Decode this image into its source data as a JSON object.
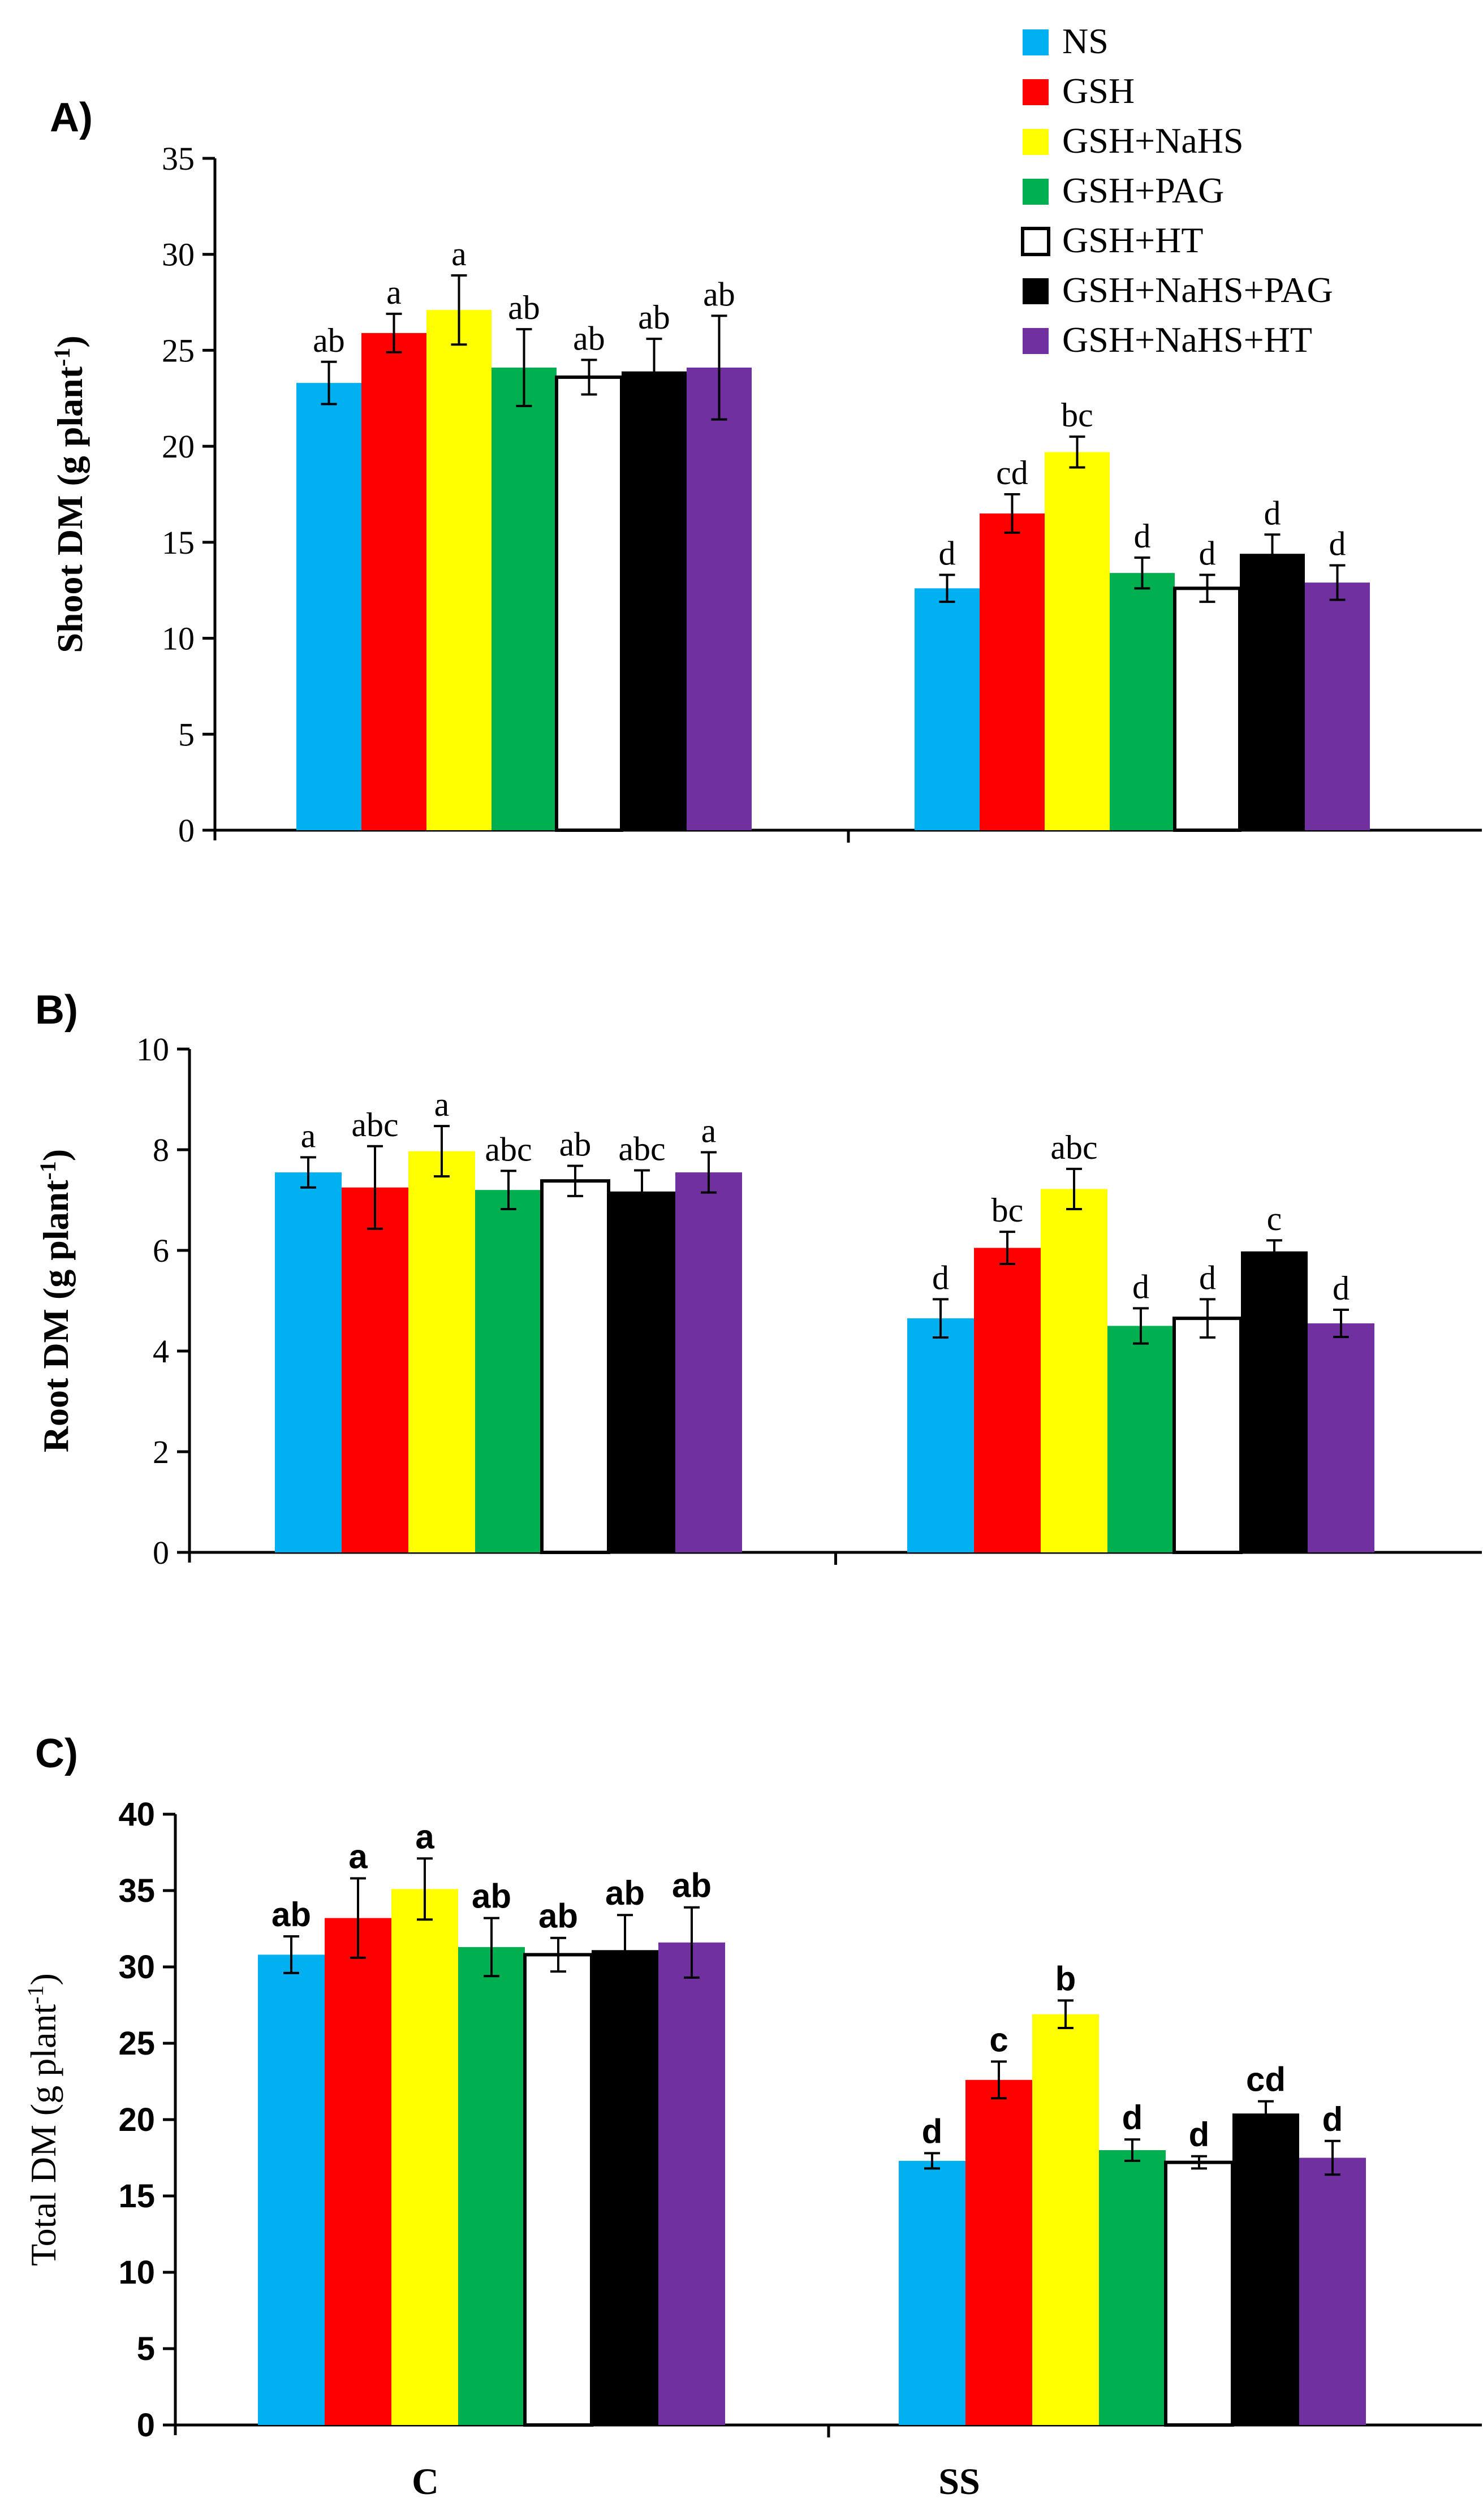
{
  "legend": {
    "entries": [
      {
        "label": "NS",
        "color": "#00B0F0"
      },
      {
        "label": "GSH",
        "color": "#FF0000"
      },
      {
        "label": "GSH+NaHS",
        "color": "#FFFF00"
      },
      {
        "label": "GSH+PAG",
        "color": "#00B050"
      },
      {
        "label": "GSH+HT",
        "color": "#FFFFFF"
      },
      {
        "label": "GSH+NaHS+PAG",
        "color": "#000000"
      },
      {
        "label": "GSH+NaHS+HT",
        "color": "#7030A0"
      }
    ]
  },
  "x_categories": [
    "C",
    "SS"
  ],
  "chart_data": [
    {
      "type": "bar",
      "panel_label": "A)",
      "ylabel": "Shoot DM (g plant",
      "ylabel_sup": "-1",
      "ylabel_close": ")",
      "ylim": [
        0,
        35
      ],
      "yticks": [
        0,
        5,
        10,
        15,
        20,
        25,
        30,
        35
      ],
      "categories": [
        "C",
        "SS"
      ],
      "series": [
        {
          "name": "NS",
          "values": [
            23.3,
            12.6
          ],
          "errors": [
            1.1,
            0.7
          ],
          "letters": [
            "ab",
            "d"
          ]
        },
        {
          "name": "GSH",
          "values": [
            25.9,
            16.5
          ],
          "errors": [
            1.0,
            1.0
          ],
          "letters": [
            "a",
            "cd"
          ]
        },
        {
          "name": "GSH+NaHS",
          "values": [
            27.1,
            19.7
          ],
          "errors": [
            1.8,
            0.8
          ],
          "letters": [
            "a",
            "bc"
          ]
        },
        {
          "name": "GSH+PAG",
          "values": [
            24.1,
            13.4
          ],
          "errors": [
            2.0,
            0.8
          ],
          "letters": [
            "ab",
            "d"
          ]
        },
        {
          "name": "GSH+HT",
          "values": [
            23.6,
            12.6
          ],
          "errors": [
            0.9,
            0.7
          ],
          "letters": [
            "ab",
            "d"
          ]
        },
        {
          "name": "GSH+NaHS+PAG",
          "values": [
            23.9,
            14.4
          ],
          "errors": [
            1.7,
            1.0
          ],
          "letters": [
            "ab",
            "d"
          ]
        },
        {
          "name": "GSH+NaHS+HT",
          "values": [
            24.1,
            12.9
          ],
          "errors": [
            2.7,
            0.9
          ],
          "letters": [
            "ab",
            "d"
          ]
        }
      ]
    },
    {
      "type": "bar",
      "panel_label": "B)",
      "ylabel": "Root DM (g plant",
      "ylabel_sup": "-1",
      "ylabel_close": ")",
      "ylim": [
        0,
        10
      ],
      "yticks": [
        0,
        2,
        4,
        6,
        8,
        10
      ],
      "categories": [
        "C",
        "SS"
      ],
      "series": [
        {
          "name": "NS",
          "values": [
            7.55,
            4.65
          ],
          "errors": [
            0.3,
            0.38
          ],
          "letters": [
            "a",
            "d"
          ]
        },
        {
          "name": "GSH",
          "values": [
            7.25,
            6.05
          ],
          "errors": [
            0.82,
            0.32
          ],
          "letters": [
            "abc",
            "bc"
          ]
        },
        {
          "name": "GSH+NaHS",
          "values": [
            7.97,
            7.22
          ],
          "errors": [
            0.5,
            0.4
          ],
          "letters": [
            "a",
            "abc"
          ]
        },
        {
          "name": "GSH+PAG",
          "values": [
            7.2,
            4.5
          ],
          "errors": [
            0.38,
            0.35
          ],
          "letters": [
            "abc",
            "d"
          ]
        },
        {
          "name": "GSH+HT",
          "values": [
            7.38,
            4.65
          ],
          "errors": [
            0.3,
            0.38
          ],
          "letters": [
            "ab",
            "d"
          ]
        },
        {
          "name": "GSH+NaHS+PAG",
          "values": [
            7.17,
            5.98
          ],
          "errors": [
            0.42,
            0.22
          ],
          "letters": [
            "abc",
            "c"
          ]
        },
        {
          "name": "GSH+NaHS+HT",
          "values": [
            7.55,
            4.55
          ],
          "errors": [
            0.4,
            0.27
          ],
          "letters": [
            "a",
            "d"
          ]
        }
      ]
    },
    {
      "type": "bar",
      "panel_label": "C)",
      "ylabel": "Total DM (g plant",
      "ylabel_sup": "-1",
      "ylabel_close": ")",
      "ylim": [
        0,
        40
      ],
      "yticks": [
        0,
        5,
        10,
        15,
        20,
        25,
        30,
        35,
        40
      ],
      "categories": [
        "C",
        "SS"
      ],
      "series": [
        {
          "name": "NS",
          "values": [
            30.8,
            17.3
          ],
          "errors": [
            1.2,
            0.5
          ],
          "letters": [
            "ab",
            "d"
          ]
        },
        {
          "name": "GSH",
          "values": [
            33.2,
            22.6
          ],
          "errors": [
            2.6,
            1.2
          ],
          "letters": [
            "a",
            "c"
          ]
        },
        {
          "name": "GSH+NaHS",
          "values": [
            35.1,
            26.9
          ],
          "errors": [
            2.0,
            0.9
          ],
          "letters": [
            "a",
            "b"
          ]
        },
        {
          "name": "GSH+PAG",
          "values": [
            31.3,
            18.0
          ],
          "errors": [
            1.9,
            0.7
          ],
          "letters": [
            "ab",
            "d"
          ]
        },
        {
          "name": "GSH+HT",
          "values": [
            30.8,
            17.2
          ],
          "errors": [
            1.1,
            0.4
          ],
          "letters": [
            "ab",
            "d"
          ]
        },
        {
          "name": "GSH+NaHS+PAG",
          "values": [
            31.1,
            20.4
          ],
          "errors": [
            2.3,
            0.8
          ],
          "letters": [
            "ab",
            "cd"
          ]
        },
        {
          "name": "GSH+NaHS+HT",
          "values": [
            31.6,
            17.5
          ],
          "errors": [
            2.3,
            1.1
          ],
          "letters": [
            "ab",
            "d"
          ]
        }
      ]
    }
  ]
}
